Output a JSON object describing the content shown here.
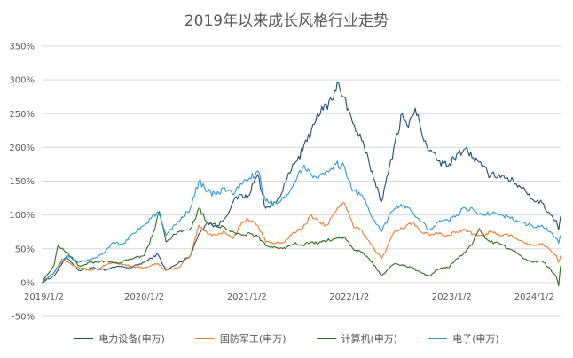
{
  "chart_data": {
    "type": "line",
    "title": "2019年以来成长风格行业走势",
    "xlabel": "",
    "ylabel": "",
    "x_ticks": [
      "2019/1/2",
      "2020/1/2",
      "2021/1/2",
      "2022/1/2",
      "2023/1/2",
      "2024/1/2"
    ],
    "y_ticks": [
      "350%",
      "300%",
      "250%",
      "200%",
      "150%",
      "100%",
      "50%",
      "0%",
      "-50%"
    ],
    "ylim": [
      -50,
      350
    ],
    "xlim": [
      "2019-01-02",
      "2024-01-25"
    ],
    "grid": "horizontal",
    "legend_position": "bottom",
    "series": [
      {
        "name": "电力设备(申万)",
        "color": "#1f4e79",
        "points": [
          [
            "2019-01-02",
            0
          ],
          [
            "2019-02-15",
            10
          ],
          [
            "2019-04-01",
            38
          ],
          [
            "2019-05-15",
            18
          ],
          [
            "2019-07-01",
            22
          ],
          [
            "2019-08-15",
            18
          ],
          [
            "2019-10-01",
            24
          ],
          [
            "2019-11-15",
            22
          ],
          [
            "2020-01-02",
            30
          ],
          [
            "2020-02-20",
            42
          ],
          [
            "2020-03-20",
            18
          ],
          [
            "2020-05-01",
            28
          ],
          [
            "2020-06-15",
            40
          ],
          [
            "2020-07-15",
            72
          ],
          [
            "2020-08-15",
            90
          ],
          [
            "2020-09-15",
            82
          ],
          [
            "2020-10-15",
            95
          ],
          [
            "2020-11-15",
            120
          ],
          [
            "2020-12-15",
            130
          ],
          [
            "2021-01-02",
            125
          ],
          [
            "2021-02-10",
            160
          ],
          [
            "2021-03-10",
            110
          ],
          [
            "2021-04-15",
            118
          ],
          [
            "2021-05-20",
            148
          ],
          [
            "2021-06-20",
            175
          ],
          [
            "2021-07-20",
            195
          ],
          [
            "2021-08-20",
            225
          ],
          [
            "2021-09-10",
            250
          ],
          [
            "2021-10-01",
            255
          ],
          [
            "2021-11-01",
            270
          ],
          [
            "2021-11-25",
            295
          ],
          [
            "2021-12-15",
            275
          ],
          [
            "2022-01-15",
            235
          ],
          [
            "2022-02-15",
            210
          ],
          [
            "2022-03-15",
            175
          ],
          [
            "2022-04-27",
            120
          ],
          [
            "2022-05-20",
            160
          ],
          [
            "2022-06-15",
            210
          ],
          [
            "2022-07-10",
            250
          ],
          [
            "2022-08-01",
            230
          ],
          [
            "2022-08-25",
            258
          ],
          [
            "2022-09-15",
            225
          ],
          [
            "2022-10-15",
            195
          ],
          [
            "2022-11-15",
            180
          ],
          [
            "2022-12-20",
            172
          ],
          [
            "2023-01-20",
            190
          ],
          [
            "2023-02-20",
            198
          ],
          [
            "2023-03-20",
            185
          ],
          [
            "2023-04-20",
            172
          ],
          [
            "2023-05-20",
            158
          ],
          [
            "2023-06-20",
            160
          ],
          [
            "2023-07-20",
            155
          ],
          [
            "2023-08-20",
            146
          ],
          [
            "2023-09-20",
            138
          ],
          [
            "2023-10-20",
            122
          ],
          [
            "2023-11-20",
            118
          ],
          [
            "2023-12-20",
            100
          ],
          [
            "2024-01-10",
            92
          ],
          [
            "2024-01-18",
            78
          ],
          [
            "2024-01-25",
            98
          ]
        ]
      },
      {
        "name": "国防军工(申万)",
        "color": "#ed7d31",
        "points": [
          [
            "2019-01-02",
            0
          ],
          [
            "2019-02-15",
            15
          ],
          [
            "2019-03-15",
            35
          ],
          [
            "2019-04-15",
            28
          ],
          [
            "2019-05-15",
            22
          ],
          [
            "2019-07-01",
            18
          ],
          [
            "2019-08-15",
            25
          ],
          [
            "2019-09-15",
            30
          ],
          [
            "2019-11-15",
            24
          ],
          [
            "2020-01-02",
            22
          ],
          [
            "2020-02-20",
            28
          ],
          [
            "2020-03-20",
            18
          ],
          [
            "2020-05-01",
            22
          ],
          [
            "2020-06-15",
            40
          ],
          [
            "2020-07-15",
            85
          ],
          [
            "2020-08-15",
            72
          ],
          [
            "2020-09-15",
            70
          ],
          [
            "2020-10-15",
            75
          ],
          [
            "2020-11-15",
            65
          ],
          [
            "2020-12-15",
            90
          ],
          [
            "2021-01-02",
            95
          ],
          [
            "2021-02-10",
            85
          ],
          [
            "2021-03-10",
            60
          ],
          [
            "2021-04-15",
            58
          ],
          [
            "2021-05-20",
            62
          ],
          [
            "2021-06-20",
            75
          ],
          [
            "2021-07-20",
            80
          ],
          [
            "2021-08-20",
            100
          ],
          [
            "2021-09-15",
            90
          ],
          [
            "2021-10-15",
            85
          ],
          [
            "2021-11-15",
            105
          ],
          [
            "2021-12-15",
            118
          ],
          [
            "2022-01-15",
            85
          ],
          [
            "2022-02-15",
            78
          ],
          [
            "2022-03-15",
            60
          ],
          [
            "2022-04-27",
            35
          ],
          [
            "2022-05-20",
            55
          ],
          [
            "2022-06-15",
            78
          ],
          [
            "2022-07-15",
            80
          ],
          [
            "2022-08-15",
            90
          ],
          [
            "2022-09-15",
            75
          ],
          [
            "2022-10-15",
            70
          ],
          [
            "2022-11-15",
            72
          ],
          [
            "2022-12-20",
            70
          ],
          [
            "2023-01-20",
            75
          ],
          [
            "2023-02-20",
            78
          ],
          [
            "2023-03-20",
            72
          ],
          [
            "2023-04-20",
            70
          ],
          [
            "2023-05-20",
            75
          ],
          [
            "2023-06-20",
            70
          ],
          [
            "2023-07-20",
            72
          ],
          [
            "2023-08-20",
            65
          ],
          [
            "2023-09-20",
            58
          ],
          [
            "2023-10-20",
            55
          ],
          [
            "2023-11-20",
            58
          ],
          [
            "2023-12-20",
            48
          ],
          [
            "2024-01-10",
            40
          ],
          [
            "2024-01-18",
            30
          ],
          [
            "2024-01-25",
            40
          ]
        ]
      },
      {
        "name": "计算机(申万)",
        "color": "#2e6e1e",
        "points": [
          [
            "2019-01-02",
            0
          ],
          [
            "2019-02-15",
            25
          ],
          [
            "2019-03-01",
            55
          ],
          [
            "2019-04-01",
            45
          ],
          [
            "2019-05-15",
            25
          ],
          [
            "2019-07-01",
            30
          ],
          [
            "2019-08-15",
            32
          ],
          [
            "2019-10-01",
            28
          ],
          [
            "2019-11-15",
            35
          ],
          [
            "2020-01-02",
            40
          ],
          [
            "2020-02-10",
            80
          ],
          [
            "2020-02-25",
            105
          ],
          [
            "2020-03-20",
            60
          ],
          [
            "2020-05-01",
            75
          ],
          [
            "2020-06-15",
            80
          ],
          [
            "2020-07-15",
            110
          ],
          [
            "2020-08-15",
            90
          ],
          [
            "2020-09-15",
            85
          ],
          [
            "2020-10-15",
            82
          ],
          [
            "2020-11-15",
            75
          ],
          [
            "2020-12-15",
            70
          ],
          [
            "2021-01-02",
            72
          ],
          [
            "2021-02-10",
            68
          ],
          [
            "2021-03-10",
            55
          ],
          [
            "2021-04-15",
            52
          ],
          [
            "2021-05-20",
            50
          ],
          [
            "2021-06-20",
            58
          ],
          [
            "2021-07-20",
            55
          ],
          [
            "2021-08-20",
            60
          ],
          [
            "2021-09-15",
            58
          ],
          [
            "2021-10-15",
            62
          ],
          [
            "2021-11-15",
            65
          ],
          [
            "2021-12-15",
            68
          ],
          [
            "2022-01-15",
            50
          ],
          [
            "2022-02-15",
            45
          ],
          [
            "2022-03-15",
            35
          ],
          [
            "2022-04-27",
            10
          ],
          [
            "2022-05-20",
            20
          ],
          [
            "2022-06-15",
            28
          ],
          [
            "2022-07-15",
            25
          ],
          [
            "2022-08-15",
            22
          ],
          [
            "2022-09-15",
            15
          ],
          [
            "2022-10-15",
            10
          ],
          [
            "2022-11-15",
            20
          ],
          [
            "2022-12-20",
            22
          ],
          [
            "2023-01-20",
            35
          ],
          [
            "2023-02-20",
            45
          ],
          [
            "2023-03-20",
            60
          ],
          [
            "2023-04-10",
            80
          ],
          [
            "2023-04-20",
            72
          ],
          [
            "2023-05-20",
            60
          ],
          [
            "2023-06-20",
            58
          ],
          [
            "2023-07-20",
            50
          ],
          [
            "2023-08-20",
            45
          ],
          [
            "2023-09-20",
            35
          ],
          [
            "2023-10-20",
            30
          ],
          [
            "2023-11-20",
            32
          ],
          [
            "2023-12-20",
            20
          ],
          [
            "2024-01-10",
            8
          ],
          [
            "2024-01-18",
            -5
          ],
          [
            "2024-01-25",
            25
          ]
        ]
      },
      {
        "name": "电子(申万)",
        "color": "#2e9bd6",
        "points": [
          [
            "2019-01-02",
            0
          ],
          [
            "2019-02-15",
            15
          ],
          [
            "2019-04-01",
            40
          ],
          [
            "2019-05-15",
            30
          ],
          [
            "2019-07-01",
            35
          ],
          [
            "2019-08-15",
            45
          ],
          [
            "2019-09-15",
            60
          ],
          [
            "2019-10-15",
            55
          ],
          [
            "2019-11-15",
            70
          ],
          [
            "2020-01-02",
            85
          ],
          [
            "2020-02-20",
            105
          ],
          [
            "2020-03-20",
            70
          ],
          [
            "2020-05-01",
            90
          ],
          [
            "2020-06-15",
            110
          ],
          [
            "2020-07-15",
            150
          ],
          [
            "2020-08-15",
            135
          ],
          [
            "2020-09-15",
            130
          ],
          [
            "2020-10-15",
            140
          ],
          [
            "2020-11-15",
            130
          ],
          [
            "2020-12-15",
            145
          ],
          [
            "2021-01-02",
            150
          ],
          [
            "2021-02-10",
            165
          ],
          [
            "2021-03-10",
            120
          ],
          [
            "2021-04-15",
            118
          ],
          [
            "2021-05-20",
            125
          ],
          [
            "2021-06-20",
            150
          ],
          [
            "2021-07-20",
            170
          ],
          [
            "2021-08-20",
            160
          ],
          [
            "2021-09-15",
            155
          ],
          [
            "2021-10-15",
            165
          ],
          [
            "2021-11-15",
            175
          ],
          [
            "2021-12-15",
            172
          ],
          [
            "2022-01-15",
            135
          ],
          [
            "2022-02-15",
            130
          ],
          [
            "2022-03-15",
            105
          ],
          [
            "2022-04-27",
            75
          ],
          [
            "2022-05-20",
            95
          ],
          [
            "2022-06-15",
            110
          ],
          [
            "2022-07-15",
            115
          ],
          [
            "2022-08-15",
            105
          ],
          [
            "2022-09-15",
            90
          ],
          [
            "2022-10-15",
            78
          ],
          [
            "2022-11-15",
            90
          ],
          [
            "2022-12-20",
            92
          ],
          [
            "2023-01-20",
            100
          ],
          [
            "2023-02-20",
            110
          ],
          [
            "2023-03-20",
            108
          ],
          [
            "2023-04-20",
            100
          ],
          [
            "2023-05-20",
            102
          ],
          [
            "2023-06-20",
            100
          ],
          [
            "2023-07-20",
            98
          ],
          [
            "2023-08-20",
            92
          ],
          [
            "2023-09-20",
            88
          ],
          [
            "2023-10-20",
            82
          ],
          [
            "2023-11-20",
            85
          ],
          [
            "2023-12-20",
            75
          ],
          [
            "2024-01-10",
            65
          ],
          [
            "2024-01-18",
            58
          ],
          [
            "2024-01-25",
            70
          ]
        ]
      }
    ]
  }
}
